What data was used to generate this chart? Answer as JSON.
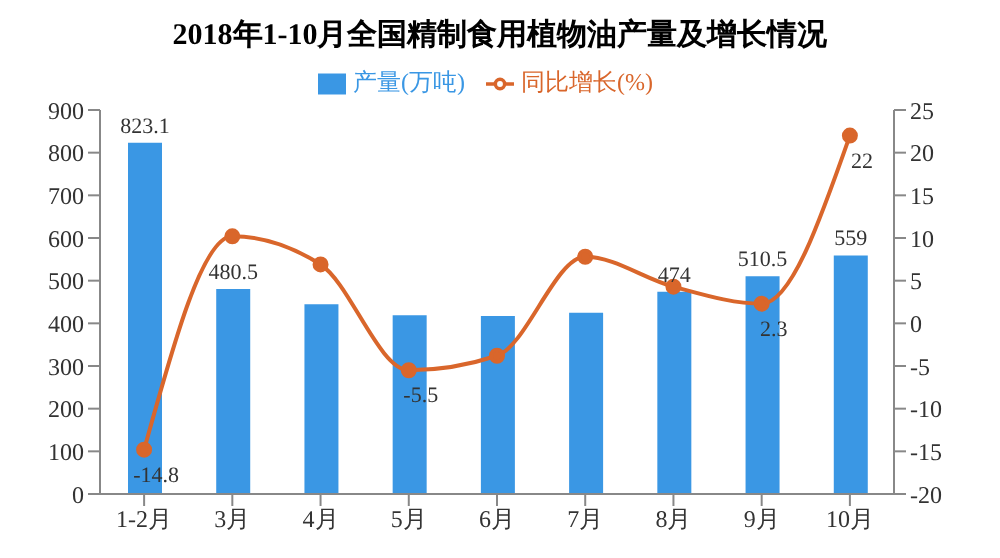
{
  "chart_data": {
    "type": "bar",
    "title": "2018年1-10月全国精制食用植物油产量及增长情况",
    "categories": [
      "1-2月",
      "3月",
      "4月",
      "5月",
      "6月",
      "7月",
      "8月",
      "9月",
      "10月"
    ],
    "series": [
      {
        "name": "产量(万吨)",
        "color": "#3a97e4",
        "values": [
          823.1,
          480.5,
          445,
          419,
          417,
          425,
          474,
          510.5,
          559
        ],
        "value_labels": [
          "823.1",
          "480.5",
          null,
          null,
          null,
          null,
          "474",
          "510.5",
          "559"
        ]
      },
      {
        "name": "同比增长(%)",
        "type": "line",
        "axis": "y2",
        "color": "#d9662b",
        "marker": "circle",
        "values": [
          -14.8,
          10.2,
          6.9,
          -5.5,
          -3.8,
          7.8,
          4.3,
          2.3,
          22
        ],
        "value_labels": [
          "-14.8",
          null,
          null,
          "-5.5",
          null,
          null,
          null,
          "2.3",
          "22"
        ]
      }
    ],
    "ylim": [
      0,
      900
    ],
    "yticks": [
      0,
      100,
      200,
      300,
      400,
      500,
      600,
      700,
      800,
      900
    ],
    "y2lim": [
      -20,
      25
    ],
    "y2ticks": [
      -20,
      -15,
      -10,
      -5,
      0,
      5,
      10,
      15,
      20,
      25
    ],
    "legend": "top"
  }
}
